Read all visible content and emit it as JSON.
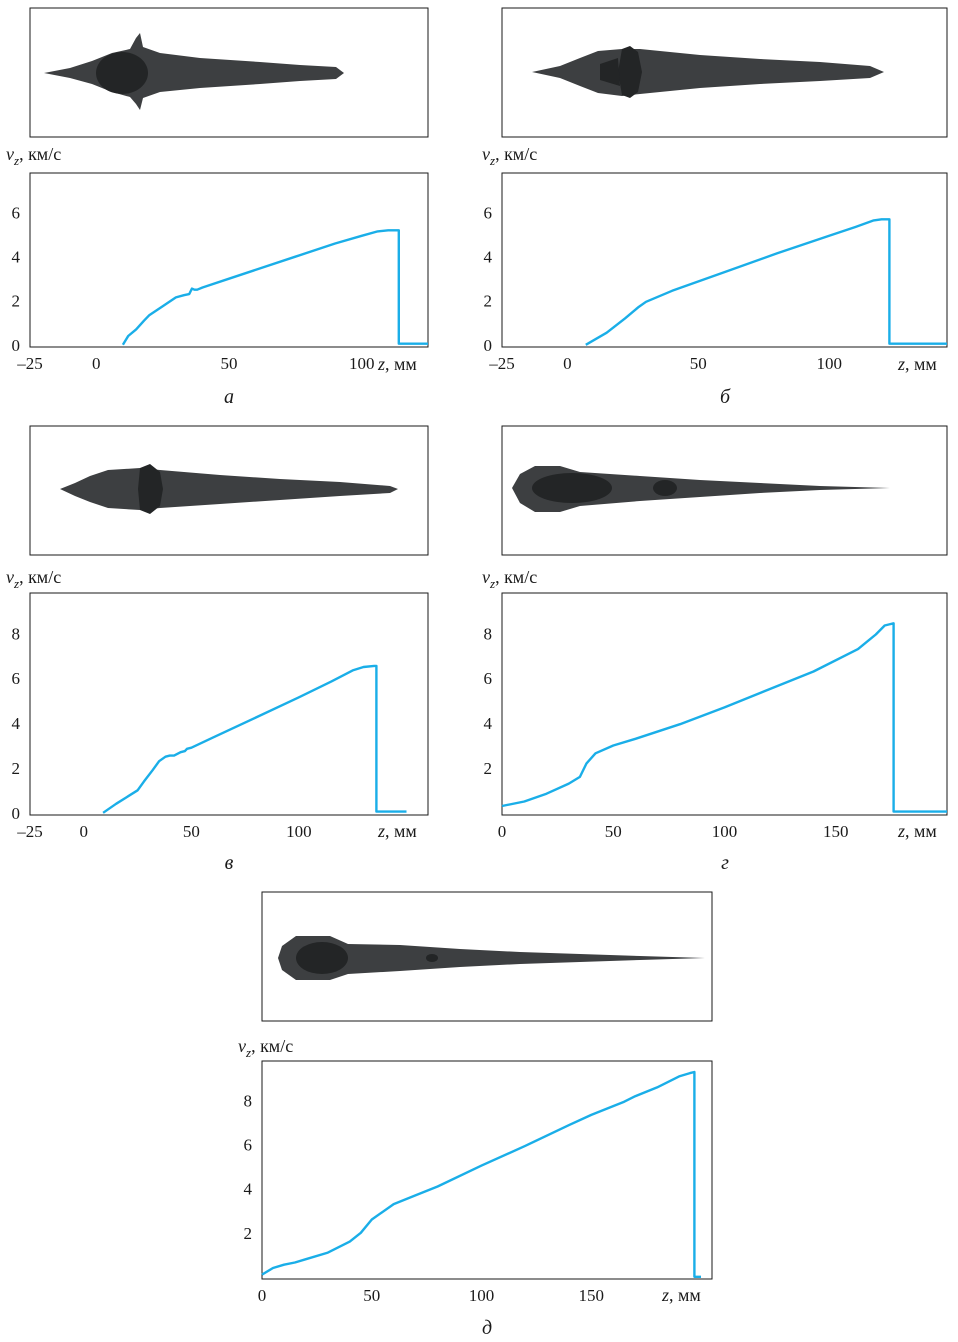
{
  "chart_data": [
    {
      "type": "line",
      "panel_label": "а",
      "x_unit_label": "z, мм",
      "y_unit_label": "vz, км/с",
      "y_var": "v",
      "y_sub": "z",
      "y_unit": ", км/с",
      "x_var": "z",
      "x_unit": ", мм",
      "xlim": [
        -25,
        125
      ],
      "ylim": [
        -0.1,
        7.8
      ],
      "xticks": [
        "–25",
        "0",
        "50",
        "100"
      ],
      "yticks": [
        "0",
        "2",
        "4",
        "6"
      ],
      "line_color": "#1aaee8",
      "x": [
        10,
        12,
        15,
        18,
        20,
        25,
        30,
        33,
        35,
        36,
        37,
        38,
        40,
        50,
        60,
        75,
        90,
        100,
        106,
        110,
        114,
        114,
        125
      ],
      "values": [
        0,
        0.4,
        0.7,
        1.1,
        1.35,
        1.75,
        2.15,
        2.25,
        2.3,
        2.55,
        2.5,
        2.5,
        2.6,
        3.0,
        3.4,
        4.0,
        4.6,
        4.95,
        5.15,
        5.2,
        5.2,
        0.05,
        0.05
      ]
    },
    {
      "type": "line",
      "panel_label": "б",
      "x_unit_label": "z, мм",
      "y_unit_label": "vz, км/с",
      "y_var": "v",
      "y_sub": "z",
      "y_unit": ", км/с",
      "x_var": "z",
      "x_unit": ", мм",
      "xlim": [
        -25,
        145
      ],
      "ylim": [
        -0.1,
        7.8
      ],
      "xticks": [
        "–25",
        "0",
        "50",
        "100"
      ],
      "yticks": [
        "0",
        "2",
        "4",
        "6"
      ],
      "line_color": "#1aaee8",
      "x": [
        7,
        15,
        22,
        27,
        30,
        40,
        60,
        80,
        100,
        110,
        117,
        120,
        123,
        123,
        145
      ],
      "values": [
        0,
        0.55,
        1.2,
        1.7,
        1.95,
        2.45,
        3.3,
        4.15,
        4.95,
        5.35,
        5.65,
        5.7,
        5.7,
        0.05,
        0.05
      ]
    },
    {
      "type": "line",
      "panel_label": "в",
      "x_unit_label": "z, мм",
      "y_unit_label": "vz, км/с",
      "y_var": "v",
      "y_sub": "z",
      "y_unit": ", км/с",
      "x_var": "z",
      "x_unit": ", мм",
      "xlim": [
        -25,
        160
      ],
      "ylim": [
        -0.1,
        9.8
      ],
      "xticks": [
        "–25",
        "0",
        "50",
        "100"
      ],
      "yticks": [
        "0",
        "2",
        "4",
        "6",
        "8"
      ],
      "line_color": "#1aaee8",
      "x": [
        9,
        15,
        20,
        25,
        28,
        32,
        35,
        38,
        40,
        42,
        45,
        47,
        48,
        50,
        60,
        80,
        100,
        115,
        125,
        130,
        135,
        136,
        136,
        150
      ],
      "values": [
        0,
        0.4,
        0.7,
        1.0,
        1.4,
        1.9,
        2.3,
        2.5,
        2.55,
        2.55,
        2.7,
        2.75,
        2.85,
        2.9,
        3.35,
        4.25,
        5.15,
        5.85,
        6.35,
        6.5,
        6.55,
        6.55,
        0.05,
        0.05
      ]
    },
    {
      "type": "line",
      "panel_label": "г",
      "x_unit_label": "z, мм",
      "y_unit_label": "vz, км/с",
      "y_var": "v",
      "y_sub": "z",
      "y_unit": ", км/с",
      "x_var": "z",
      "x_unit": ", мм",
      "xlim": [
        0,
        200
      ],
      "ylim": [
        -0.1,
        9.8
      ],
      "xticks": [
        "0",
        "50",
        "100",
        "150"
      ],
      "yticks": [
        "2",
        "4",
        "6",
        "8"
      ],
      "line_color": "#1aaee8",
      "x": [
        0,
        10,
        20,
        30,
        35,
        38,
        42,
        50,
        60,
        80,
        100,
        120,
        140,
        160,
        168,
        172,
        176,
        176,
        200
      ],
      "values": [
        0.3,
        0.5,
        0.85,
        1.3,
        1.6,
        2.2,
        2.65,
        3.0,
        3.3,
        3.95,
        4.7,
        5.5,
        6.3,
        7.3,
        7.95,
        8.35,
        8.45,
        0.05,
        0.05
      ]
    },
    {
      "type": "line",
      "panel_label": "д",
      "x_unit_label": "z, мм",
      "y_unit_label": "vz, км/с",
      "y_var": "v",
      "y_sub": "z",
      "y_unit": ", км/с",
      "x_var": "z",
      "x_unit": ", мм",
      "xlim": [
        0,
        205
      ],
      "ylim": [
        -0.1,
        9.8
      ],
      "xticks": [
        "0",
        "50",
        "100",
        "150"
      ],
      "yticks": [
        "2",
        "4",
        "6",
        "8"
      ],
      "line_color": "#1aaee8",
      "x": [
        0,
        5,
        10,
        15,
        20,
        30,
        40,
        45,
        50,
        60,
        70,
        80,
        100,
        120,
        140,
        150,
        160,
        165,
        170,
        180,
        190,
        195,
        197,
        197,
        200
      ],
      "values": [
        0.1,
        0.4,
        0.55,
        0.65,
        0.8,
        1.1,
        1.6,
        2.0,
        2.6,
        3.3,
        3.7,
        4.1,
        5.05,
        5.95,
        6.9,
        7.35,
        7.75,
        7.95,
        8.2,
        8.6,
        9.1,
        9.25,
        9.3,
        0.0,
        0.0
      ]
    }
  ]
}
